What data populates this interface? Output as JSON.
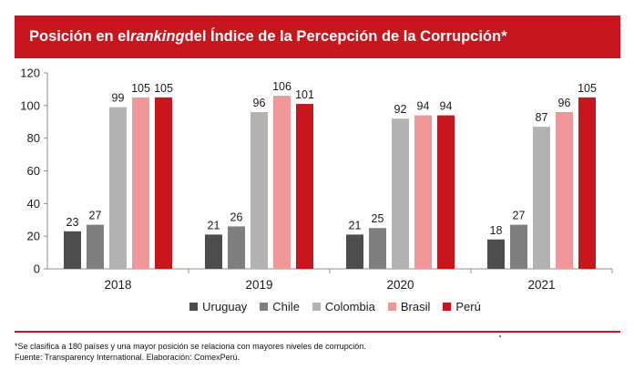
{
  "title": {
    "part1": "Posición en el ",
    "part2_italic": "ranking",
    "part3": " del Índice de la Percepción de la Corrupción*"
  },
  "chart_data": {
    "type": "bar",
    "categories": [
      "2018",
      "2019",
      "2020",
      "2021"
    ],
    "series": [
      {
        "name": "Uruguay",
        "color": "#4d4d4d",
        "values": [
          23,
          21,
          21,
          18
        ]
      },
      {
        "name": "Chile",
        "color": "#7f7f7f",
        "values": [
          27,
          26,
          25,
          27
        ]
      },
      {
        "name": "Colombia",
        "color": "#b3b3b3",
        "values": [
          99,
          96,
          92,
          87
        ]
      },
      {
        "name": "Brasil",
        "color": "#f0979a",
        "values": [
          105,
          106,
          94,
          96
        ]
      },
      {
        "name": "Perú",
        "color": "#c8161f",
        "values": [
          105,
          101,
          94,
          105
        ]
      }
    ],
    "ylim": [
      0,
      120
    ],
    "yticks": [
      0,
      20,
      40,
      60,
      80,
      100,
      120
    ],
    "grid": false,
    "legend_position": "bottom"
  },
  "footnote": {
    "line1": "*Se clasifica a 180 países y una mayor posición se relaciona con mayores niveles de corrupción.",
    "line2": "Fuente: Transparency International. Elaboración: ComexPerú."
  },
  "colors": {
    "accent": "#c8161f"
  }
}
